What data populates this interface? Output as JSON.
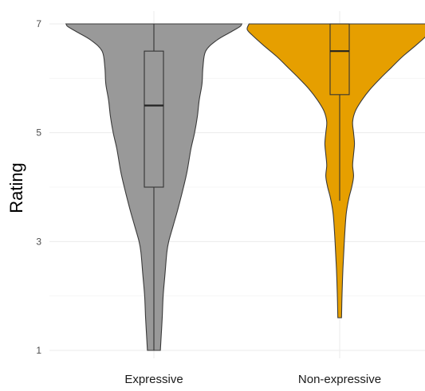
{
  "chart_data": {
    "type": "violin",
    "ylabel": "Rating",
    "xlabel": "",
    "ylim": [
      1,
      7
    ],
    "yticks": [
      "1",
      "3",
      "5",
      "7"
    ],
    "grid": true,
    "categories": [
      "Expressive",
      "Non-expressive"
    ],
    "series": [
      {
        "category": "Expressive",
        "color": "#999999",
        "box": {
          "q1": 4.0,
          "median": 5.5,
          "q3": 6.5,
          "whisker_low": 1.0,
          "whisker_high": 7.0
        },
        "density_profile": [
          [
            1.0,
            0.07
          ],
          [
            1.3,
            0.08
          ],
          [
            1.6,
            0.09
          ],
          [
            2.0,
            0.1
          ],
          [
            2.4,
            0.12
          ],
          [
            2.8,
            0.14
          ],
          [
            3.0,
            0.16
          ],
          [
            3.3,
            0.21
          ],
          [
            3.6,
            0.26
          ],
          [
            4.0,
            0.32
          ],
          [
            4.3,
            0.36
          ],
          [
            4.7,
            0.4
          ],
          [
            5.0,
            0.44
          ],
          [
            5.3,
            0.47
          ],
          [
            5.6,
            0.49
          ],
          [
            5.9,
            0.52
          ],
          [
            6.2,
            0.53
          ],
          [
            6.5,
            0.56
          ],
          [
            6.7,
            0.68
          ],
          [
            6.85,
            0.83
          ],
          [
            6.95,
            0.93
          ],
          [
            7.0,
            0.95
          ]
        ]
      },
      {
        "category": "Non-expressive",
        "color": "#E69F00",
        "box": {
          "q1": 5.7,
          "median": 6.5,
          "q3": 7.0,
          "whisker_low": 3.75,
          "whisker_high": 7.0
        },
        "density_profile": [
          [
            1.6,
            0.02
          ],
          [
            2.0,
            0.025
          ],
          [
            2.5,
            0.035
          ],
          [
            3.0,
            0.05
          ],
          [
            3.5,
            0.07
          ],
          [
            3.8,
            0.1
          ],
          [
            4.0,
            0.13
          ],
          [
            4.2,
            0.15
          ],
          [
            4.4,
            0.14
          ],
          [
            4.6,
            0.15
          ],
          [
            4.8,
            0.16
          ],
          [
            5.0,
            0.15
          ],
          [
            5.2,
            0.14
          ],
          [
            5.4,
            0.17
          ],
          [
            5.6,
            0.24
          ],
          [
            5.8,
            0.33
          ],
          [
            6.0,
            0.44
          ],
          [
            6.2,
            0.56
          ],
          [
            6.4,
            0.68
          ],
          [
            6.6,
            0.82
          ],
          [
            6.8,
            0.95
          ],
          [
            6.9,
            1.0
          ],
          [
            7.0,
            0.98
          ]
        ]
      }
    ]
  }
}
